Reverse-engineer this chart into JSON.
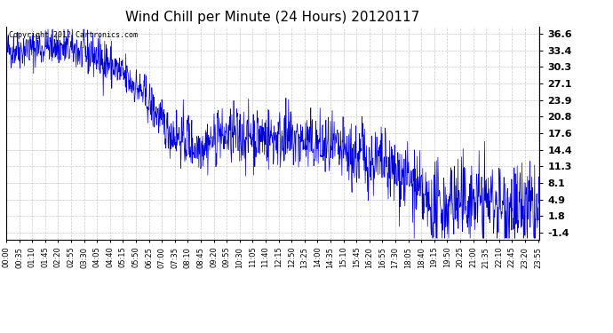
{
  "title": "Wind Chill per Minute (24 Hours) 20120117",
  "copyright_text": "Copyright 2012 Cartronics.com",
  "line_color": "#0000dd",
  "background_color": "#ffffff",
  "grid_color": "#bbbbbb",
  "yticks": [
    -1.4,
    1.8,
    4.9,
    8.1,
    11.3,
    14.4,
    17.6,
    20.8,
    23.9,
    27.1,
    30.3,
    33.4,
    36.6
  ],
  "ymin": -2.8,
  "ymax": 38.0,
  "total_minutes": 1440,
  "xtick_interval": 35,
  "xtick_labels": [
    "00:00",
    "00:35",
    "01:10",
    "01:45",
    "02:20",
    "02:55",
    "03:30",
    "04:05",
    "04:40",
    "05:15",
    "05:50",
    "06:25",
    "07:00",
    "07:35",
    "08:10",
    "08:45",
    "09:20",
    "09:55",
    "10:30",
    "11:05",
    "11:40",
    "12:15",
    "12:50",
    "13:25",
    "14:00",
    "14:35",
    "15:10",
    "15:45",
    "16:20",
    "16:55",
    "17:30",
    "18:05",
    "18:40",
    "19:15",
    "19:50",
    "20:25",
    "21:00",
    "21:35",
    "22:10",
    "22:45",
    "23:20",
    "23:55"
  ],
  "title_fontsize": 11,
  "ytick_fontsize": 8,
  "xtick_fontsize": 6
}
